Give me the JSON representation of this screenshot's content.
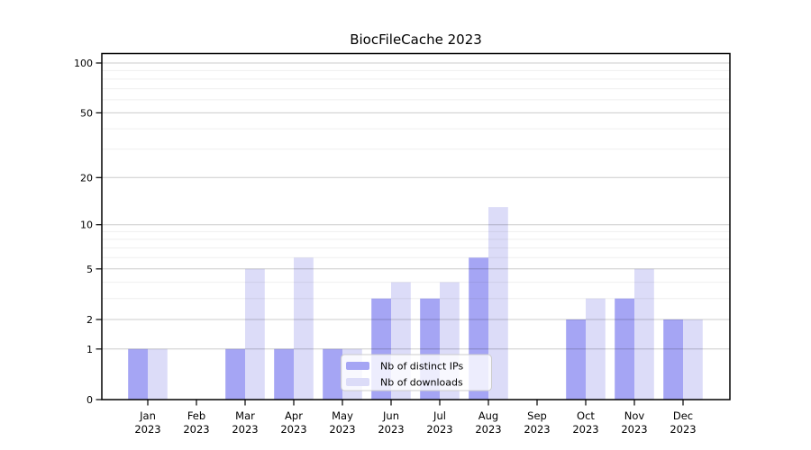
{
  "chart_data": {
    "type": "bar",
    "title": "BiocFileCache 2023",
    "categories": [
      "Jan 2023",
      "Feb 2023",
      "Mar 2023",
      "Apr 2023",
      "May 2023",
      "Jun 2023",
      "Jul 2023",
      "Aug 2023",
      "Sep 2023",
      "Oct 2023",
      "Nov 2023",
      "Dec 2023"
    ],
    "series": [
      {
        "name": "Nb of distinct IPs",
        "key": "ips",
        "color": "#a5a5f4",
        "values": [
          1,
          0,
          1,
          1,
          1,
          3,
          3,
          6,
          0,
          2,
          3,
          2
        ]
      },
      {
        "name": "Nb of downloads",
        "key": "downloads",
        "color": "#dcdcf8",
        "values": [
          1,
          0,
          5,
          6,
          1,
          4,
          4,
          13,
          0,
          3,
          5,
          2
        ]
      }
    ],
    "xlabel": "",
    "ylabel": "",
    "yaxis": {
      "scale": "log1p",
      "tick_labels": [
        100,
        50,
        20,
        10,
        5,
        2,
        1,
        0
      ],
      "minor_gridlines": [
        90,
        80,
        70,
        60,
        40,
        30,
        9,
        8,
        7,
        6,
        4,
        3
      ],
      "ylim": [
        0,
        100
      ]
    },
    "legend": {
      "entries": [
        "Nb of distinct IPs",
        "Nb of downloads"
      ],
      "position": "lower center inside",
      "border_color": "#cccccc",
      "background": "rgba(255,255,255,0.8)"
    },
    "grid": true,
    "style": {
      "major_grid_color": "#cccccc",
      "minor_grid_color": "#efefef",
      "axis_color": "#000000",
      "background": "#ffffff",
      "text_color": "#000000"
    }
  }
}
